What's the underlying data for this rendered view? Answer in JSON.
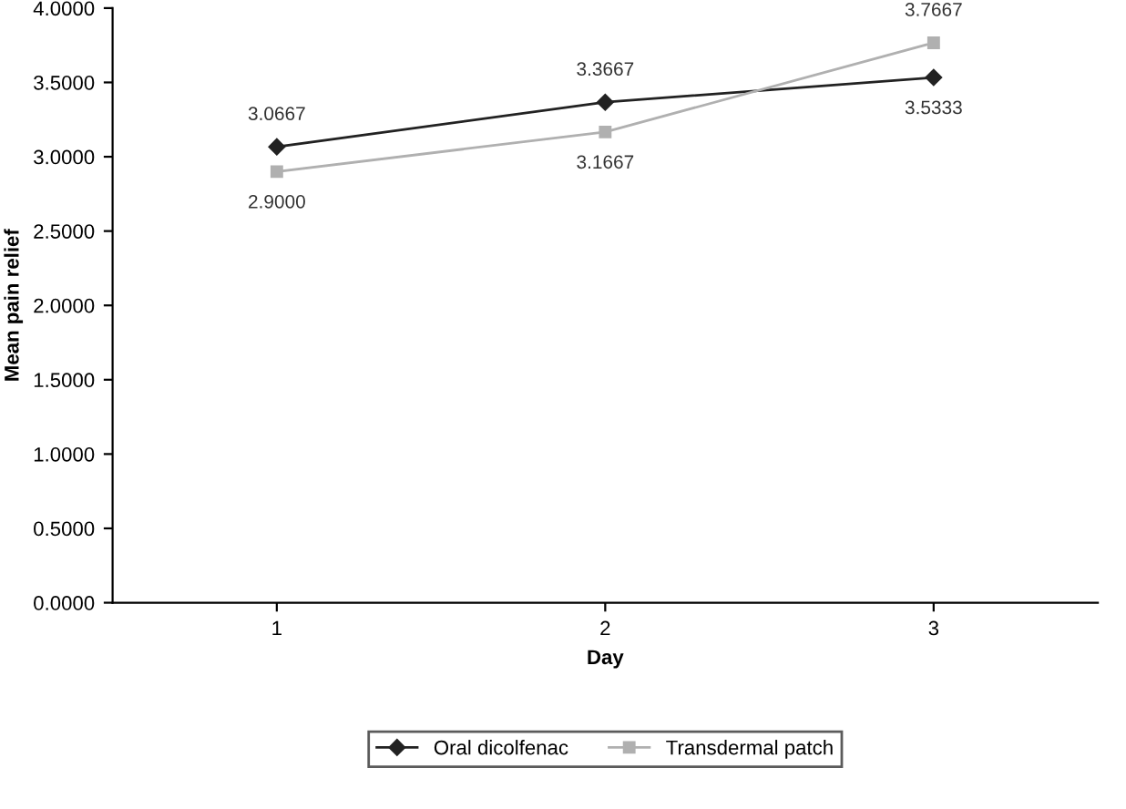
{
  "chart_data": {
    "type": "line",
    "xlabel": "Day",
    "ylabel": "Mean pain relief",
    "categories": [
      "1",
      "2",
      "3"
    ],
    "series": [
      {
        "name": "Oral dicolfenac",
        "color": "#222222",
        "marker": "diamond",
        "values": [
          3.0667,
          3.3667,
          3.5333
        ],
        "value_labels": [
          "3.0667",
          "3.3667",
          "3.5333"
        ]
      },
      {
        "name": "Transdermal patch",
        "color": "#b0b0b0",
        "marker": "square",
        "values": [
          2.9,
          3.1667,
          3.7667
        ],
        "value_labels": [
          "2.9000",
          "3.1667",
          "3.7667"
        ]
      }
    ],
    "ylim": [
      0,
      4
    ],
    "yticks": [
      {
        "value": 0,
        "label": "0.0000"
      },
      {
        "value": 0.5,
        "label": "0.5000"
      },
      {
        "value": 1,
        "label": "1.0000"
      },
      {
        "value": 1.5,
        "label": "1.5000"
      },
      {
        "value": 2,
        "label": "2.0000"
      },
      {
        "value": 2.5,
        "label": "2.5000"
      },
      {
        "value": 3,
        "label": "3.0000"
      },
      {
        "value": 3.5,
        "label": "3.5000"
      },
      {
        "value": 4,
        "label": "4.0000"
      }
    ],
    "legend": "bottom",
    "grid": false,
    "line_style": "solid"
  }
}
